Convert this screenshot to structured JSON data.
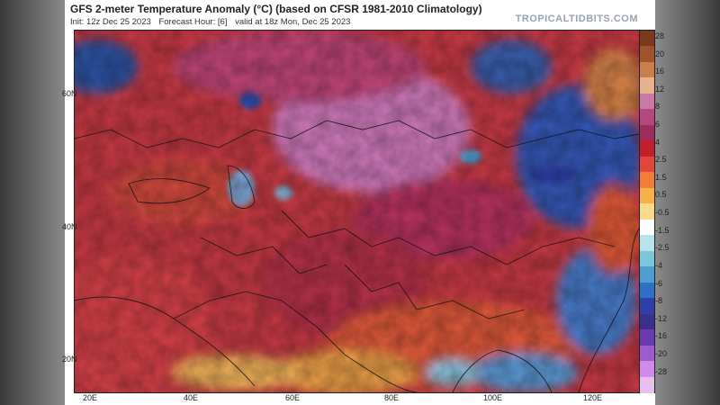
{
  "header": {
    "title": "GFS 2-meter Temperature Anomaly (°C) (based on CFSR 1981-2010 Climatology)",
    "init": "Init: 12z Dec 25 2023",
    "forecast_hour": "Forecast Hour: [6]",
    "valid": "valid at 18z Mon, Dec 25 2023",
    "site": "TROPICALTIDBITS.COM"
  },
  "axes": {
    "lat_labels": [
      "60N",
      "40N",
      "20N"
    ],
    "lon_labels": [
      "20E",
      "40E",
      "60E",
      "80E",
      "100E",
      "120E"
    ]
  },
  "colorbar": {
    "labels": [
      "28",
      "20",
      "16",
      "12",
      "8",
      "6",
      "4",
      "2.5",
      "1.5",
      "0.5",
      "-0.5",
      "-1.5",
      "-2.5",
      "-4",
      "-6",
      "-8",
      "-12",
      "-16",
      "-20",
      "-28"
    ],
    "colors": [
      "#7a3a1a",
      "#a0522d",
      "#c87f4a",
      "#e6b38a",
      "#c77aa8",
      "#b3477f",
      "#9c2d5c",
      "#c21f2e",
      "#e2453a",
      "#f27c3a",
      "#f7b14a",
      "#fbd98a",
      "#ffffff",
      "#b9e3ea",
      "#7cc6dc",
      "#4f9ed0",
      "#2f6fc4",
      "#2f3fa8",
      "#3a2f8a",
      "#6a3ab0",
      "#a05ad0",
      "#d08ae8",
      "#e8c0f0"
    ]
  }
}
